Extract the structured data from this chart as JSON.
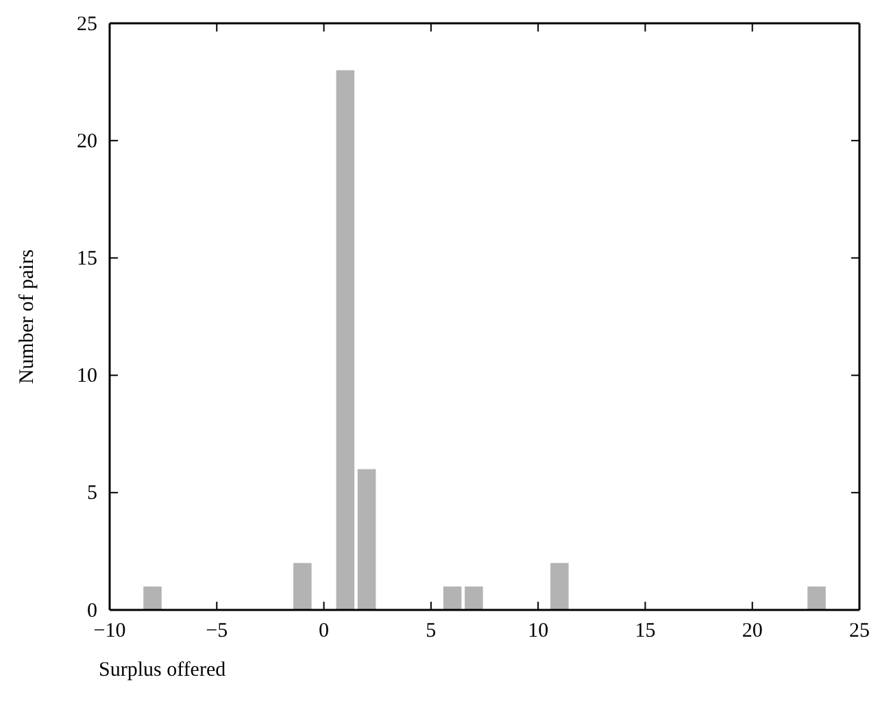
{
  "chart_data": {
    "type": "bar",
    "xlabel": "Surplus offered",
    "ylabel": "Number of pairs",
    "color": "#b3b3b3",
    "x": [
      -9,
      -8,
      -7,
      -6,
      -5,
      -4,
      -3,
      -2,
      -1,
      0,
      1,
      2,
      3,
      4,
      5,
      6,
      7,
      8,
      9,
      10,
      11,
      12,
      13,
      14,
      15,
      16,
      17,
      18,
      19,
      20,
      21,
      22,
      23,
      24
    ],
    "values": [
      0,
      1,
      0,
      0,
      0,
      0,
      0,
      0,
      2,
      0,
      23,
      6,
      0,
      0,
      0,
      1,
      1,
      0,
      0,
      0,
      2,
      0,
      0,
      0,
      0,
      0,
      0,
      0,
      0,
      0,
      0,
      0,
      1,
      0
    ],
    "xlim": [
      -10,
      25
    ],
    "xticks": [
      {
        "value": -10,
        "label": "−10"
      },
      {
        "value": -5,
        "label": "−5"
      },
      0,
      5,
      10,
      15,
      20,
      25
    ],
    "ylim": [
      0,
      25
    ],
    "yticks": [
      0,
      5,
      10,
      15,
      20,
      25
    ]
  }
}
